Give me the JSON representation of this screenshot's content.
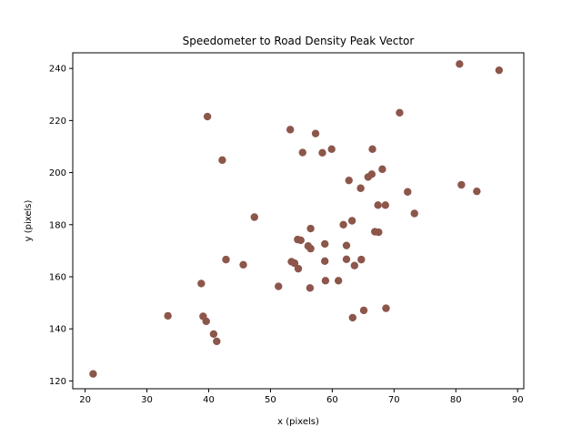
{
  "chart_data": {
    "type": "scatter",
    "title": "Speedometer to Road Density Peak Vector",
    "xlabel": "x (pixels)",
    "ylabel": "y (pixels)",
    "xlim": [
      18,
      91
    ],
    "ylim": [
      117,
      246
    ],
    "xticks": [
      20,
      30,
      40,
      50,
      60,
      70,
      80,
      90
    ],
    "yticks": [
      120,
      140,
      160,
      180,
      200,
      220,
      240
    ],
    "grid": false,
    "marker_color": "#8c564b",
    "points": [
      [
        21.3,
        122.7
      ],
      [
        33.4,
        145.0
      ],
      [
        39.1,
        144.8
      ],
      [
        39.6,
        142.9
      ],
      [
        40.8,
        138.0
      ],
      [
        41.3,
        135.2
      ],
      [
        38.8,
        157.4
      ],
      [
        39.8,
        221.5
      ],
      [
        42.2,
        204.8
      ],
      [
        42.8,
        166.6
      ],
      [
        45.6,
        164.6
      ],
      [
        47.4,
        182.9
      ],
      [
        51.3,
        156.3
      ],
      [
        53.2,
        216.5
      ],
      [
        53.4,
        165.8
      ],
      [
        53.9,
        165.2
      ],
      [
        54.4,
        174.3
      ],
      [
        54.5,
        163.1
      ],
      [
        54.9,
        174.0
      ],
      [
        55.2,
        207.7
      ],
      [
        56.1,
        171.8
      ],
      [
        56.5,
        170.8
      ],
      [
        56.4,
        155.7
      ],
      [
        56.5,
        178.5
      ],
      [
        57.3,
        215.0
      ],
      [
        58.4,
        207.6
      ],
      [
        58.8,
        172.6
      ],
      [
        58.8,
        166.0
      ],
      [
        58.9,
        158.5
      ],
      [
        59.9,
        209.0
      ],
      [
        61.0,
        158.5
      ],
      [
        61.8,
        180.0
      ],
      [
        62.3,
        172.0
      ],
      [
        62.3,
        166.7
      ],
      [
        62.7,
        197.0
      ],
      [
        63.2,
        181.5
      ],
      [
        63.3,
        144.3
      ],
      [
        63.6,
        164.3
      ],
      [
        64.6,
        194.0
      ],
      [
        64.7,
        166.6
      ],
      [
        65.1,
        147.1
      ],
      [
        65.8,
        198.3
      ],
      [
        66.4,
        199.4
      ],
      [
        66.5,
        209.0
      ],
      [
        66.9,
        177.3
      ],
      [
        67.4,
        187.5
      ],
      [
        67.5,
        177.1
      ],
      [
        68.1,
        201.3
      ],
      [
        68.6,
        187.5
      ],
      [
        68.7,
        147.9
      ],
      [
        70.9,
        223.0
      ],
      [
        72.2,
        192.6
      ],
      [
        73.3,
        184.3
      ],
      [
        80.6,
        241.7
      ],
      [
        80.9,
        195.3
      ],
      [
        83.4,
        192.8
      ],
      [
        87.0,
        239.3
      ]
    ]
  }
}
